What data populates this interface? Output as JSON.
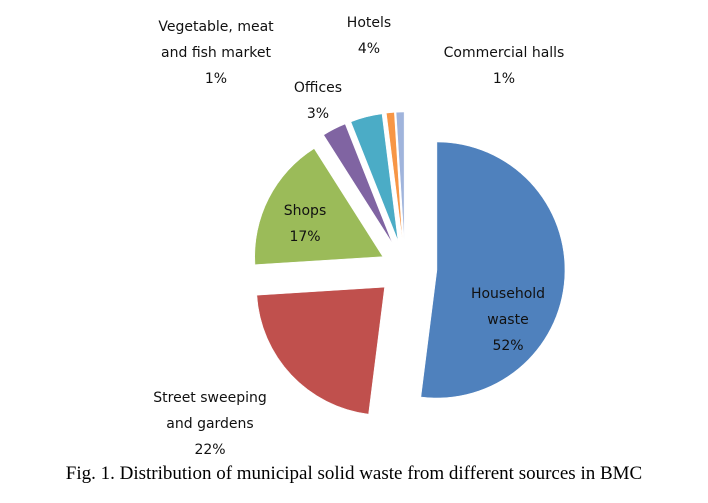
{
  "chart_data": {
    "type": "pie",
    "exploded": true,
    "caption": "Fig. 1. Distribution of municipal solid waste from different sources in BMC",
    "slices": [
      {
        "name": "Household waste",
        "value": 52,
        "label_lines": [
          "Household",
          "waste",
          "52%"
        ],
        "color": "#4F81BD"
      },
      {
        "name": "Street sweeping and gardens",
        "value": 22,
        "label_lines": [
          "Street sweeping",
          "and gardens",
          "22%"
        ],
        "color": "#C0504D"
      },
      {
        "name": "Shops",
        "value": 17,
        "label_lines": [
          "Shops",
          "17%"
        ],
        "color": "#9BBB59"
      },
      {
        "name": "Offices",
        "value": 3,
        "label_lines": [
          "Offices",
          "3%"
        ],
        "color": "#8064A2"
      },
      {
        "name": "Hotels",
        "value": 4,
        "label_lines": [
          "Hotels",
          "4%"
        ],
        "color": "#4BACC6"
      },
      {
        "name": "Vegetable, meat and fish market",
        "value": 1,
        "label_lines": [
          "Vegetable, meat",
          "and fish  market",
          "1%"
        ],
        "color": "#F79646"
      },
      {
        "name": "Commercial halls",
        "value": 1,
        "label_lines": [
          "Commercial halls",
          "1%"
        ],
        "color": "#A0B4DC"
      }
    ]
  }
}
